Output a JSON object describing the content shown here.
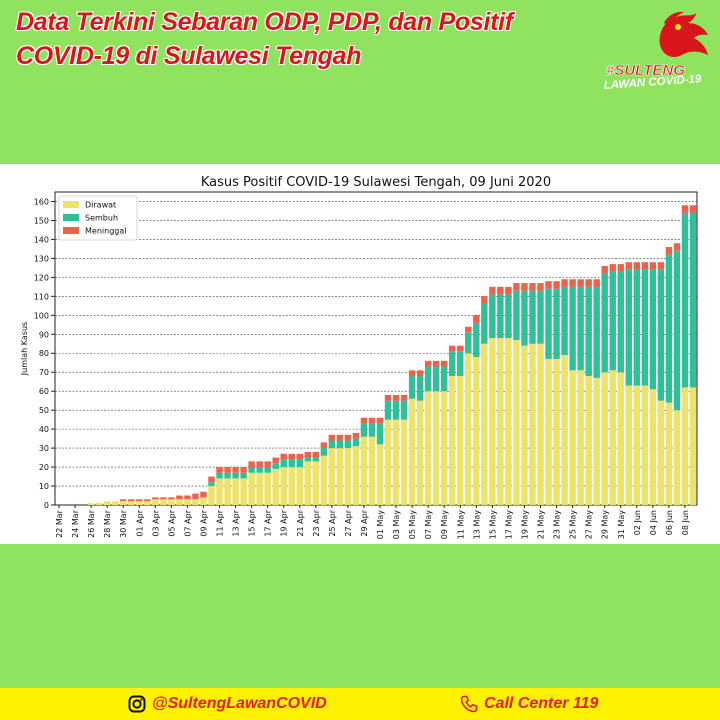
{
  "header": {
    "title_line1": "Data Terkini Sebaran ODP, PDP, dan Positif",
    "title_line2": "COVID-19 di Sulawesi Tengah"
  },
  "logo": {
    "line1": "#SULTENG",
    "line2": "LAWAN COVID-19",
    "icon": "maleo-bird-logo"
  },
  "footer": {
    "instagram": "@SultengLawanCOVID",
    "instagram_icon": "instagram-icon",
    "call_center": "Call Center 119",
    "call_icon": "phone-icon"
  },
  "colors": {
    "background": "#90e35f",
    "title": "#d8161b",
    "footer_bg": "#fff200",
    "footer_text": "#e51c24",
    "dirawat": "#ede36a",
    "sembuh": "#2ec197",
    "meninggal": "#f0614b"
  },
  "chart_data": {
    "type": "bar",
    "stacked": true,
    "title": "Kasus Positif COVID-19 Sulawesi Tengah, 09 Juni 2020",
    "ylabel": "Jumlah Kasus",
    "xlabel": "",
    "ylim": [
      0,
      165
    ],
    "yticks": [
      0,
      10,
      20,
      30,
      40,
      50,
      60,
      70,
      80,
      90,
      100,
      110,
      120,
      130,
      140,
      150,
      160
    ],
    "grid": "horizontal dashed",
    "legend": "top-left",
    "tick_labels": [
      "22 Mar",
      "24 Mar",
      "26 Mar",
      "28 Mar",
      "30 Mar",
      "01 Apr",
      "03 Apr",
      "05 Apr",
      "07 Apr",
      "09 Apr",
      "11 Apr",
      "13 Apr",
      "15 Apr",
      "17 Apr",
      "19 Apr",
      "21 Apr",
      "23 Apr",
      "25 Apr",
      "27 Apr",
      "29 Apr",
      "01 May",
      "03 May",
      "05 May",
      "07 May",
      "09 May",
      "11 May",
      "13 May",
      "15 May",
      "17 May",
      "19 May",
      "21 May",
      "23 May",
      "25 May",
      "27 May",
      "29 May",
      "31 May",
      "02 Jun",
      "04 Jun",
      "06 Jun",
      "08 Jun"
    ],
    "categories": [
      "22 Mar",
      "23 Mar",
      "24 Mar",
      "25 Mar",
      "26 Mar",
      "27 Mar",
      "28 Mar",
      "29 Mar",
      "30 Mar",
      "31 Mar",
      "01 Apr",
      "02 Apr",
      "03 Apr",
      "04 Apr",
      "05 Apr",
      "06 Apr",
      "07 Apr",
      "08 Apr",
      "09 Apr",
      "10 Apr",
      "11 Apr",
      "12 Apr",
      "13 Apr",
      "14 Apr",
      "15 Apr",
      "16 Apr",
      "17 Apr",
      "18 Apr",
      "19 Apr",
      "20 Apr",
      "21 Apr",
      "22 Apr",
      "23 Apr",
      "24 Apr",
      "25 Apr",
      "26 Apr",
      "27 Apr",
      "28 Apr",
      "29 Apr",
      "30 Apr",
      "01 May",
      "02 May",
      "03 May",
      "04 May",
      "05 May",
      "06 May",
      "07 May",
      "08 May",
      "09 May",
      "10 May",
      "11 May",
      "12 May",
      "13 May",
      "14 May",
      "15 May",
      "16 May",
      "17 May",
      "18 May",
      "19 May",
      "20 May",
      "21 May",
      "22 May",
      "23 May",
      "24 May",
      "25 May",
      "26 May",
      "27 May",
      "28 May",
      "29 May",
      "30 May",
      "31 May",
      "01 Jun",
      "02 Jun",
      "03 Jun",
      "04 Jun",
      "05 Jun",
      "06 Jun",
      "07 Jun",
      "08 Jun",
      "09 Jun"
    ],
    "series": [
      {
        "name": "Dirawat",
        "color": "#ede36a",
        "values": [
          0,
          0,
          0,
          0,
          1,
          1,
          2,
          2,
          2,
          2,
          2,
          2,
          3,
          3,
          3,
          3,
          3,
          3,
          4,
          10,
          14,
          14,
          14,
          14,
          17,
          17,
          17,
          19,
          20,
          20,
          20,
          23,
          23,
          26,
          30,
          30,
          30,
          31,
          36,
          36,
          32,
          45,
          45,
          45,
          56,
          55,
          60,
          60,
          60,
          68,
          68,
          80,
          78,
          85,
          88,
          88,
          88,
          87,
          84,
          85,
          85,
          77,
          77,
          79,
          71,
          71,
          68,
          67,
          70,
          71,
          70,
          63,
          63,
          63,
          61,
          55,
          54,
          50,
          62,
          62
        ]
      },
      {
        "name": "Sembuh",
        "color": "#2ec197",
        "values": [
          0,
          0,
          0,
          0,
          0,
          0,
          0,
          0,
          0,
          0,
          0,
          0,
          0,
          0,
          0,
          0,
          0,
          0,
          0,
          2,
          3,
          3,
          3,
          3,
          3,
          3,
          3,
          3,
          4,
          4,
          4,
          2,
          2,
          4,
          4,
          4,
          4,
          4,
          7,
          7,
          11,
          10,
          10,
          10,
          12,
          13,
          13,
          13,
          13,
          13,
          13,
          11,
          18,
          21,
          23,
          23,
          23,
          26,
          29,
          28,
          28,
          37,
          37,
          36,
          44,
          44,
          47,
          48,
          52,
          52,
          53,
          61,
          61,
          61,
          63,
          69,
          78,
          84,
          92,
          92
        ]
      },
      {
        "name": "Meninggal",
        "color": "#f0614b",
        "values": [
          0,
          0,
          0,
          0,
          0,
          0,
          0,
          0,
          1,
          1,
          1,
          1,
          1,
          1,
          1,
          2,
          2,
          3,
          3,
          3,
          3,
          3,
          3,
          3,
          3,
          3,
          3,
          3,
          3,
          3,
          3,
          3,
          3,
          3,
          3,
          3,
          3,
          3,
          3,
          3,
          3,
          3,
          3,
          3,
          3,
          3,
          3,
          3,
          3,
          3,
          3,
          3,
          4,
          4,
          4,
          4,
          4,
          4,
          4,
          4,
          4,
          4,
          4,
          4,
          4,
          4,
          4,
          4,
          4,
          4,
          4,
          4,
          4,
          4,
          4,
          4,
          4,
          4,
          4,
          4
        ]
      }
    ]
  }
}
